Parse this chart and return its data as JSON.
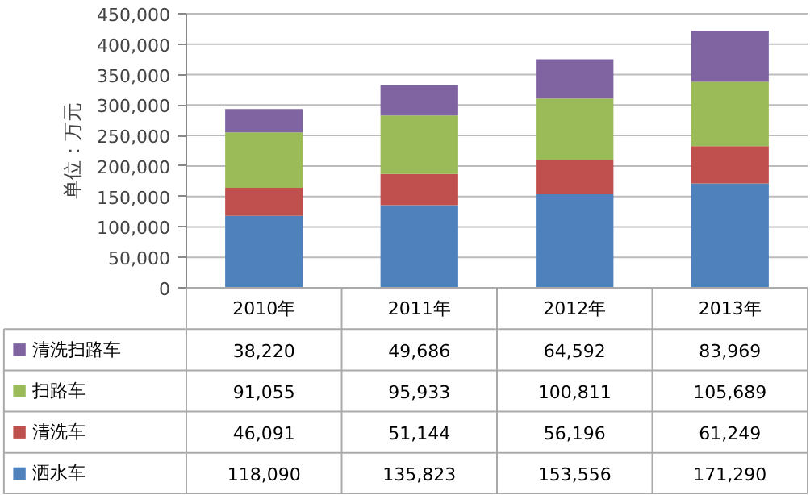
{
  "chart_data": {
    "type": "bar",
    "stacked": true,
    "ylabel": "单位：万元",
    "categories": [
      "2010年",
      "2011年",
      "2012年",
      "2013年"
    ],
    "series": [
      {
        "name": "洒水车",
        "color": "#4f81bd",
        "values": [
          118090,
          135823,
          153556,
          171290
        ],
        "value_labels": [
          "118,090",
          "135,823",
          "153,556",
          "171,290"
        ]
      },
      {
        "name": "清洗车",
        "color": "#c0504d",
        "values": [
          46091,
          51144,
          56196,
          61249
        ],
        "value_labels": [
          "46,091",
          "51,144",
          "56,196",
          "61,249"
        ]
      },
      {
        "name": "扫路车",
        "color": "#9bbb59",
        "values": [
          91055,
          95933,
          100811,
          105689
        ],
        "value_labels": [
          "91,055",
          "95,933",
          "100,811",
          "105,689"
        ]
      },
      {
        "name": "清洗扫路车",
        "color": "#8064a2",
        "values": [
          38220,
          49686,
          64592,
          83969
        ],
        "value_labels": [
          "38,220",
          "49,686",
          "64,592",
          "83,969"
        ]
      }
    ],
    "ylim": [
      0,
      450000
    ],
    "yticks": [
      {
        "value": 0,
        "label": "0"
      },
      {
        "value": 50000,
        "label": "50,000"
      },
      {
        "value": 100000,
        "label": "100,000"
      },
      {
        "value": 150000,
        "label": "150,000"
      },
      {
        "value": 200000,
        "label": "200,000"
      },
      {
        "value": 250000,
        "label": "250,000"
      },
      {
        "value": 300000,
        "label": "300,000"
      },
      {
        "value": 350000,
        "label": "350,000"
      },
      {
        "value": 400000,
        "label": "400,000"
      },
      {
        "value": 450000,
        "label": "450,000"
      }
    ],
    "grid": "y",
    "legend": "bottom"
  }
}
